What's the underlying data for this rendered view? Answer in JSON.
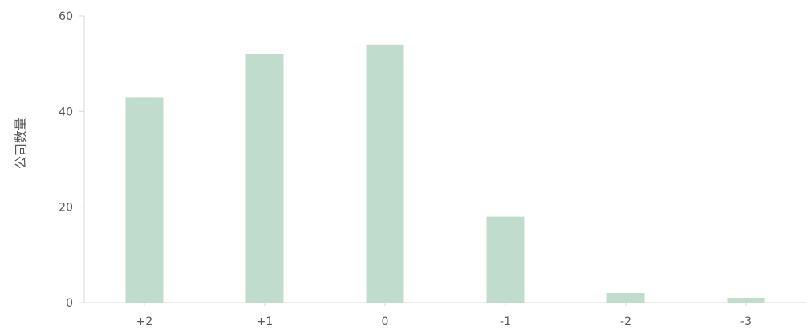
{
  "chart_data": {
    "type": "bar",
    "title": "",
    "xlabel": "",
    "ylabel": "公司数量",
    "categories": [
      "+2",
      "+1",
      "0",
      "-1",
      "-2",
      "-3"
    ],
    "values": [
      43,
      52,
      54,
      18,
      2,
      1
    ],
    "ylim": [
      0,
      60
    ],
    "yticks": [
      0,
      20,
      40,
      60
    ],
    "grid": false,
    "legend": "none",
    "bar_color": "#bfdccc",
    "axis_color": "#d9d9d9",
    "text_color": "#595959"
  }
}
